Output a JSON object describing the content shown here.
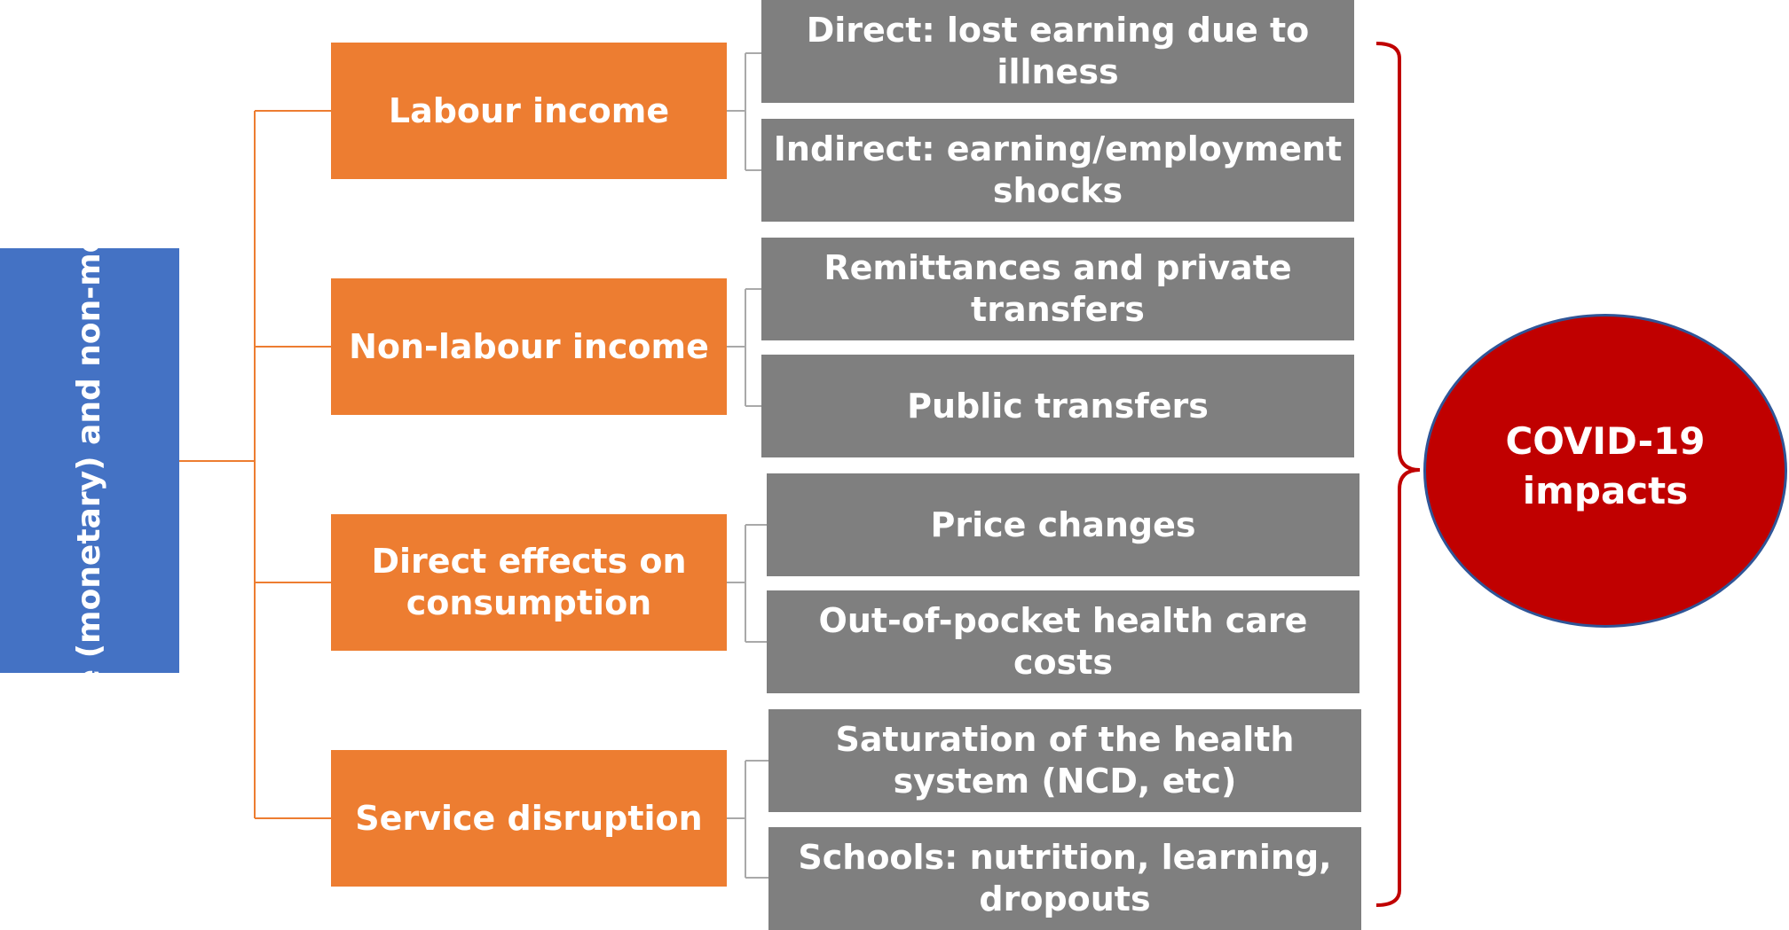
{
  "root": {
    "label": "Welfare (monetary) and non-monetary"
  },
  "categories": [
    {
      "label": "Labour income",
      "items": [
        "Direct: lost earning due to illness",
        "Indirect: earning/employment shocks"
      ]
    },
    {
      "label": "Non-labour income",
      "items": [
        "Remittances and private transfers",
        "Public transfers"
      ]
    },
    {
      "label": "Direct effects on consumption",
      "items": [
        "Price changes",
        "Out-of-pocket health care costs"
      ]
    },
    {
      "label": "Service disruption",
      "items": [
        "Saturation of the health system (NCD, etc)",
        "Schools: nutrition, learning, dropouts"
      ]
    }
  ],
  "impact": {
    "label": "COVID-19 impacts"
  },
  "colors": {
    "root_fill": "#4472c4",
    "category_fill": "#ed7d31",
    "item_fill": "#7f7f7f",
    "impact_fill": "#c00000",
    "impact_outline": "#2f5597",
    "tree_line": "#ed7d31",
    "bracket_line": "#a9a9a9",
    "brace_line": "#c00000"
  }
}
